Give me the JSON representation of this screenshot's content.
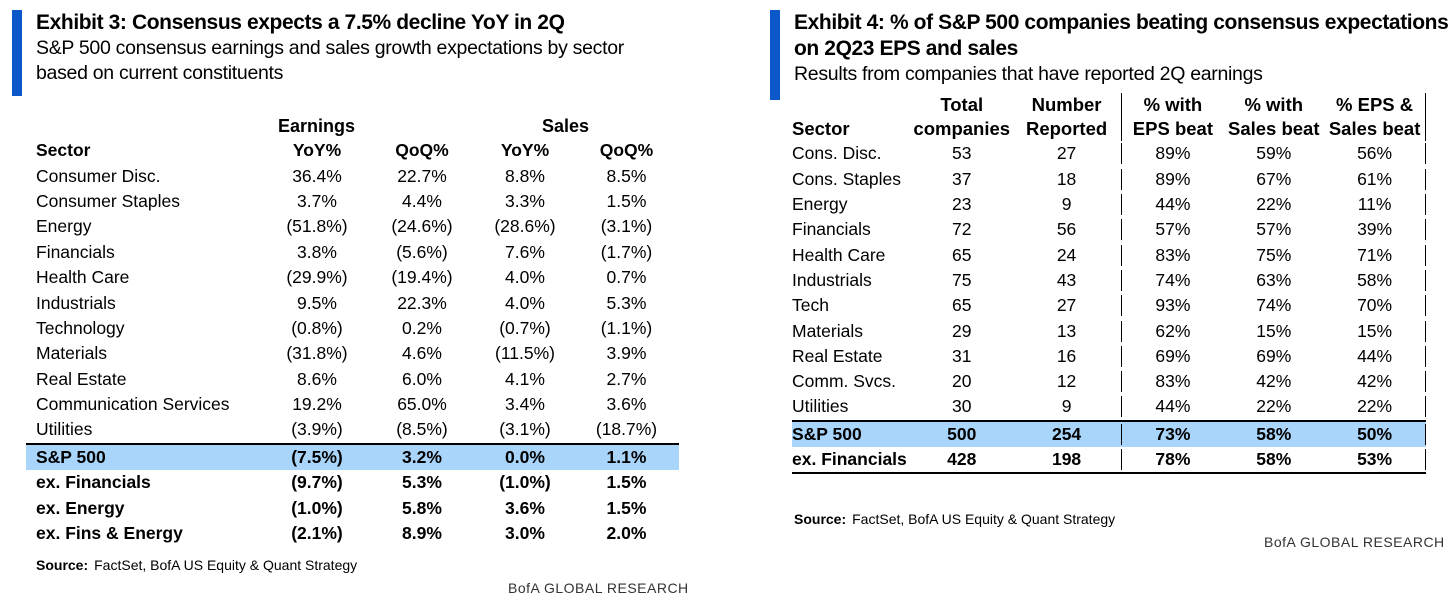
{
  "exhibit3": {
    "title": "Exhibit 3: Consensus expects a 7.5% decline YoY in 2Q",
    "subtitle_line1": "S&P 500 consensus earnings and sales growth expectations by sector",
    "subtitle_line2": "based on current constituents",
    "group_earnings": "Earnings",
    "group_sales": "Sales",
    "columns": [
      "Sector",
      "YoY%",
      "QoQ%",
      "YoY%",
      "QoQ%"
    ],
    "rows": [
      [
        "Consumer Disc.",
        "36.4%",
        "22.7%",
        "8.8%",
        "8.5%"
      ],
      [
        "Consumer Staples",
        "3.7%",
        "4.4%",
        "3.3%",
        "1.5%"
      ],
      [
        "Energy",
        "(51.8%)",
        "(24.6%)",
        "(28.6%)",
        "(3.1%)"
      ],
      [
        "Financials",
        "3.8%",
        "(5.6%)",
        "7.6%",
        "(1.7%)"
      ],
      [
        "Health Care",
        "(29.9%)",
        "(19.4%)",
        "4.0%",
        "0.7%"
      ],
      [
        "Industrials",
        "9.5%",
        "22.3%",
        "4.0%",
        "5.3%"
      ],
      [
        "Technology",
        "(0.8%)",
        "0.2%",
        "(0.7%)",
        "(1.1%)"
      ],
      [
        "Materials",
        "(31.8%)",
        "4.6%",
        "(11.5%)",
        "3.9%"
      ],
      [
        "Real Estate",
        "8.6%",
        "6.0%",
        "4.1%",
        "2.7%"
      ],
      [
        "Communication Services",
        "19.2%",
        "65.0%",
        "3.4%",
        "3.6%"
      ],
      [
        "Utilities",
        "(3.9%)",
        "(8.5%)",
        "(3.1%)",
        "(18.7%)"
      ]
    ],
    "totals": [
      [
        "S&P 500",
        "(7.5%)",
        "3.2%",
        "0.0%",
        "1.1%"
      ],
      [
        "ex. Financials",
        "(9.7%)",
        "5.3%",
        "(1.0%)",
        "1.5%"
      ],
      [
        "ex. Energy",
        "(1.0%)",
        "5.8%",
        "3.6%",
        "1.5%"
      ],
      [
        "ex. Fins & Energy",
        "(2.1%)",
        "8.9%",
        "3.0%",
        "2.0%"
      ]
    ],
    "source_label": "Source:",
    "source_text": "FactSet, BofA US Equity & Quant Strategy",
    "brand": "BofA GLOBAL RESEARCH"
  },
  "exhibit4": {
    "title_line1": "Exhibit 4: % of S&P 500 companies beating consensus expectations",
    "title_line2": "on 2Q23 EPS and sales",
    "subtitle": "Results from companies that have reported 2Q earnings",
    "columns": [
      [
        "",
        "Sector"
      ],
      [
        "Total",
        "companies"
      ],
      [
        "Number",
        "Reported"
      ],
      [
        "% with",
        "EPS beat"
      ],
      [
        "% with",
        "Sales beat"
      ],
      [
        "% EPS &",
        "Sales beat"
      ]
    ],
    "rows": [
      [
        "Cons. Disc.",
        "53",
        "27",
        "89%",
        "59%",
        "56%"
      ],
      [
        "Cons. Staples",
        "37",
        "18",
        "89%",
        "67%",
        "61%"
      ],
      [
        "Energy",
        "23",
        "9",
        "44%",
        "22%",
        "11%"
      ],
      [
        "Financials",
        "72",
        "56",
        "57%",
        "57%",
        "39%"
      ],
      [
        "Health Care",
        "65",
        "24",
        "83%",
        "75%",
        "71%"
      ],
      [
        "Industrials",
        "75",
        "43",
        "74%",
        "63%",
        "58%"
      ],
      [
        "Tech",
        "65",
        "27",
        "93%",
        "74%",
        "70%"
      ],
      [
        "Materials",
        "29",
        "13",
        "62%",
        "15%",
        "15%"
      ],
      [
        "Real Estate",
        "31",
        "16",
        "69%",
        "69%",
        "44%"
      ],
      [
        "Comm. Svcs.",
        "20",
        "12",
        "83%",
        "42%",
        "42%"
      ],
      [
        "Utilities",
        "30",
        "9",
        "44%",
        "22%",
        "22%"
      ]
    ],
    "totals": [
      [
        "S&P 500",
        "500",
        "254",
        "73%",
        "58%",
        "50%"
      ],
      [
        "ex. Financials",
        "428",
        "198",
        "78%",
        "58%",
        "53%"
      ]
    ],
    "source_label": "Source:",
    "source_text": "FactSet, BofA US Equity & Quant Strategy",
    "brand": "BofA GLOBAL RESEARCH"
  },
  "colors": {
    "accent": "#0a58ca",
    "highlight": "#a9d5fb"
  }
}
